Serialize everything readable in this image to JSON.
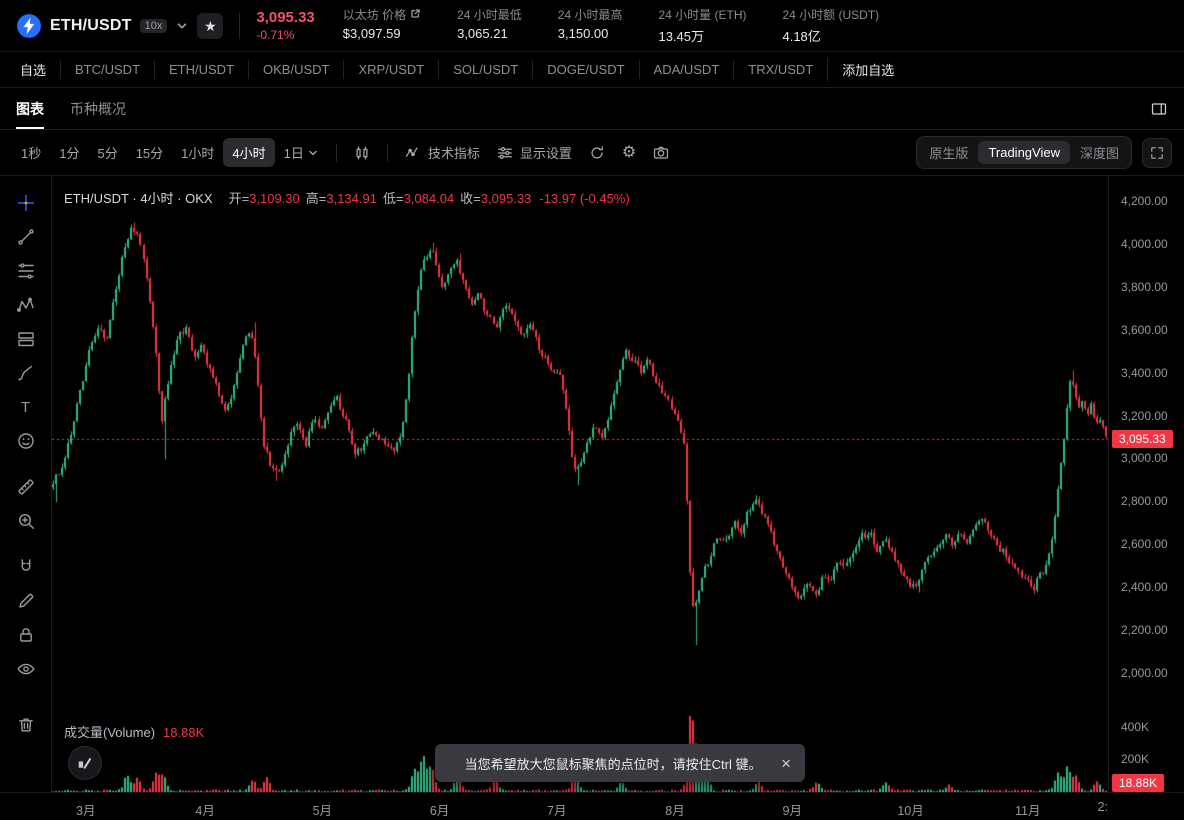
{
  "colors": {
    "up": "#2ebd85",
    "down": "#f23645",
    "accent_red": "#f0506e"
  },
  "header": {
    "pair": "ETH/USDT",
    "leverage": "10x",
    "price": "3,095.33",
    "change_pct": "-0.71%",
    "stats": [
      {
        "label": "以太坊 价格",
        "value": "$3,097.59"
      },
      {
        "label": "24 小时最低",
        "value": "3,065.21"
      },
      {
        "label": "24 小时最高",
        "value": "3,150.00"
      },
      {
        "label": "24 小时量 (ETH)",
        "value": "13.45万"
      },
      {
        "label": "24 小时额 (USDT)",
        "value": "4.18亿"
      }
    ]
  },
  "pairs_bar": {
    "items": [
      "自选",
      "BTC/USDT",
      "ETH/USDT",
      "OKB/USDT",
      "XRP/USDT",
      "SOL/USDT",
      "DOGE/USDT",
      "ADA/USDT",
      "TRX/USDT",
      "添加自选"
    ]
  },
  "view_tabs": {
    "chart": "图表",
    "overview": "币种概况"
  },
  "toolbar": {
    "intervals": [
      "1秒",
      "1分",
      "5分",
      "15分",
      "1小时",
      "4小时",
      "1日"
    ],
    "active_interval": "4小时",
    "indicators_label": "技术指标",
    "display_settings_label": "显示设置",
    "mode_tabs": [
      "原生版",
      "TradingView",
      "深度图"
    ],
    "active_mode": "TradingView"
  },
  "legend": {
    "title": "ETH/USDT · 4小时 · OKX",
    "open_label": "开=",
    "open": "3,109.30",
    "high_label": "高=",
    "high": "3,134.91",
    "low_label": "低=",
    "low": "3,084.04",
    "close_label": "收=",
    "close": "3,095.33",
    "change": "-13.97 (-0.45%)"
  },
  "volume_legend": {
    "label": "成交量(Volume)",
    "value": "18.88K"
  },
  "toast": {
    "text": "当您希望放大您鼠标聚焦的点位时，请按住Ctrl 键。"
  },
  "chart_data": {
    "type": "candlestick",
    "title": "ETH/USDT · 4小时 · OKX",
    "interval": "4小时",
    "exchange": "OKX",
    "last_price": 3095.33,
    "price_badge": "3,095.33",
    "volume_badge": "18.88K",
    "candle_count": 350,
    "y_ticks": [
      {
        "label": "4,200.00",
        "value": 4200
      },
      {
        "label": "4,000.00",
        "value": 4000
      },
      {
        "label": "3,800.00",
        "value": 3800
      },
      {
        "label": "3,600.00",
        "value": 3600
      },
      {
        "label": "3,400.00",
        "value": 3400
      },
      {
        "label": "3,200.00",
        "value": 3200
      },
      {
        "label": "3,000.00",
        "value": 3000
      },
      {
        "label": "2,800.00",
        "value": 2800
      },
      {
        "label": "2,600.00",
        "value": 2600
      },
      {
        "label": "2,400.00",
        "value": 2400
      },
      {
        "label": "2,200.00",
        "value": 2200
      },
      {
        "label": "2,000.00",
        "value": 2000
      }
    ],
    "volume_ticks": [
      {
        "label": "400K",
        "value": 400000
      },
      {
        "label": "200K",
        "value": 200000
      }
    ],
    "x_labels": [
      {
        "t": 0.032,
        "label": "3月"
      },
      {
        "t": 0.145,
        "label": "4月"
      },
      {
        "t": 0.256,
        "label": "5月"
      },
      {
        "t": 0.367,
        "label": "6月"
      },
      {
        "t": 0.478,
        "label": "7月"
      },
      {
        "t": 0.59,
        "label": "8月"
      },
      {
        "t": 0.701,
        "label": "9月"
      },
      {
        "t": 0.813,
        "label": "10月"
      },
      {
        "t": 0.924,
        "label": "11月"
      },
      {
        "t": 0.995,
        "label": "2:"
      }
    ],
    "price_path": [
      [
        0.0,
        2870
      ],
      [
        0.006,
        2915
      ],
      [
        0.012,
        2960
      ],
      [
        0.02,
        3120
      ],
      [
        0.03,
        3340
      ],
      [
        0.038,
        3520
      ],
      [
        0.046,
        3620
      ],
      [
        0.054,
        3560
      ],
      [
        0.062,
        3780
      ],
      [
        0.07,
        3960
      ],
      [
        0.078,
        4080
      ],
      [
        0.084,
        4040
      ],
      [
        0.09,
        3900
      ],
      [
        0.096,
        3680
      ],
      [
        0.101,
        3440
      ],
      [
        0.105,
        3160
      ],
      [
        0.11,
        3320
      ],
      [
        0.117,
        3500
      ],
      [
        0.123,
        3580
      ],
      [
        0.129,
        3620
      ],
      [
        0.136,
        3480
      ],
      [
        0.143,
        3530
      ],
      [
        0.15,
        3440
      ],
      [
        0.158,
        3340
      ],
      [
        0.165,
        3210
      ],
      [
        0.172,
        3300
      ],
      [
        0.18,
        3480
      ],
      [
        0.186,
        3560
      ],
      [
        0.191,
        3600
      ],
      [
        0.197,
        3360
      ],
      [
        0.203,
        3060
      ],
      [
        0.21,
        2960
      ],
      [
        0.218,
        2930
      ],
      [
        0.226,
        3080
      ],
      [
        0.234,
        3180
      ],
      [
        0.242,
        3060
      ],
      [
        0.25,
        3200
      ],
      [
        0.256,
        3130
      ],
      [
        0.263,
        3220
      ],
      [
        0.271,
        3290
      ],
      [
        0.28,
        3180
      ],
      [
        0.289,
        3020
      ],
      [
        0.297,
        3070
      ],
      [
        0.306,
        3130
      ],
      [
        0.315,
        3080
      ],
      [
        0.324,
        3040
      ],
      [
        0.332,
        3110
      ],
      [
        0.338,
        3300
      ],
      [
        0.344,
        3620
      ],
      [
        0.35,
        3870
      ],
      [
        0.356,
        3930
      ],
      [
        0.361,
        3990
      ],
      [
        0.366,
        3890
      ],
      [
        0.372,
        3800
      ],
      [
        0.379,
        3880
      ],
      [
        0.385,
        3930
      ],
      [
        0.392,
        3830
      ],
      [
        0.399,
        3720
      ],
      [
        0.407,
        3770
      ],
      [
        0.415,
        3660
      ],
      [
        0.423,
        3610
      ],
      [
        0.431,
        3720
      ],
      [
        0.439,
        3660
      ],
      [
        0.447,
        3570
      ],
      [
        0.455,
        3630
      ],
      [
        0.463,
        3520
      ],
      [
        0.47,
        3450
      ],
      [
        0.477,
        3420
      ],
      [
        0.484,
        3390
      ],
      [
        0.49,
        3180
      ],
      [
        0.496,
        2950
      ],
      [
        0.502,
        2980
      ],
      [
        0.509,
        3080
      ],
      [
        0.516,
        3150
      ],
      [
        0.523,
        3090
      ],
      [
        0.531,
        3240
      ],
      [
        0.539,
        3410
      ],
      [
        0.546,
        3500
      ],
      [
        0.553,
        3460
      ],
      [
        0.56,
        3410
      ],
      [
        0.567,
        3480
      ],
      [
        0.574,
        3360
      ],
      [
        0.581,
        3310
      ],
      [
        0.588,
        3250
      ],
      [
        0.595,
        3160
      ],
      [
        0.601,
        3060
      ],
      [
        0.605,
        2520
      ],
      [
        0.609,
        2300
      ],
      [
        0.613,
        2380
      ],
      [
        0.619,
        2480
      ],
      [
        0.626,
        2560
      ],
      [
        0.633,
        2650
      ],
      [
        0.64,
        2610
      ],
      [
        0.647,
        2700
      ],
      [
        0.654,
        2670
      ],
      [
        0.661,
        2760
      ],
      [
        0.669,
        2810
      ],
      [
        0.676,
        2740
      ],
      [
        0.683,
        2660
      ],
      [
        0.69,
        2560
      ],
      [
        0.697,
        2470
      ],
      [
        0.704,
        2390
      ],
      [
        0.711,
        2350
      ],
      [
        0.718,
        2440
      ],
      [
        0.725,
        2360
      ],
      [
        0.732,
        2450
      ],
      [
        0.739,
        2430
      ],
      [
        0.746,
        2530
      ],
      [
        0.753,
        2490
      ],
      [
        0.76,
        2560
      ],
      [
        0.768,
        2650
      ],
      [
        0.776,
        2660
      ],
      [
        0.783,
        2580
      ],
      [
        0.79,
        2640
      ],
      [
        0.798,
        2560
      ],
      [
        0.806,
        2480
      ],
      [
        0.813,
        2420
      ],
      [
        0.82,
        2400
      ],
      [
        0.827,
        2510
      ],
      [
        0.834,
        2555
      ],
      [
        0.841,
        2600
      ],
      [
        0.848,
        2640
      ],
      [
        0.855,
        2610
      ],
      [
        0.862,
        2660
      ],
      [
        0.869,
        2620
      ],
      [
        0.876,
        2690
      ],
      [
        0.883,
        2730
      ],
      [
        0.89,
        2660
      ],
      [
        0.897,
        2600
      ],
      [
        0.904,
        2560
      ],
      [
        0.911,
        2520
      ],
      [
        0.918,
        2470
      ],
      [
        0.925,
        2430
      ],
      [
        0.931,
        2400
      ],
      [
        0.937,
        2460
      ],
      [
        0.943,
        2500
      ],
      [
        0.948,
        2620
      ],
      [
        0.953,
        2800
      ],
      [
        0.958,
        3020
      ],
      [
        0.962,
        3200
      ],
      [
        0.966,
        3360
      ],
      [
        0.97,
        3330
      ],
      [
        0.974,
        3230
      ],
      [
        0.978,
        3290
      ],
      [
        0.982,
        3210
      ],
      [
        0.986,
        3260
      ],
      [
        0.99,
        3150
      ],
      [
        0.994,
        3190
      ],
      [
        1.0,
        3095
      ]
    ],
    "wick_lows": [
      [
        0.004,
        2800
      ],
      [
        0.105,
        3000
      ],
      [
        0.211,
        2900
      ],
      [
        0.496,
        2880
      ],
      [
        0.597,
        3070
      ],
      [
        0.609,
        2135
      ],
      [
        0.82,
        2380
      ],
      [
        0.931,
        2380
      ]
    ],
    "wick_highs": [
      [
        0.078,
        4105
      ],
      [
        0.191,
        3640
      ],
      [
        0.361,
        4010
      ],
      [
        0.385,
        3960
      ],
      [
        0.966,
        3415
      ]
    ],
    "volume_spikes": [
      [
        0.072,
        100
      ],
      [
        0.082,
        80
      ],
      [
        0.099,
        115
      ],
      [
        0.106,
        90
      ],
      [
        0.191,
        65
      ],
      [
        0.204,
        80
      ],
      [
        0.344,
        130
      ],
      [
        0.352,
        215
      ],
      [
        0.36,
        150
      ],
      [
        0.385,
        105
      ],
      [
        0.42,
        65
      ],
      [
        0.496,
        145
      ],
      [
        0.54,
        55
      ],
      [
        0.605,
        470
      ],
      [
        0.611,
        205
      ],
      [
        0.62,
        115
      ],
      [
        0.669,
        55
      ],
      [
        0.725,
        50
      ],
      [
        0.79,
        45
      ],
      [
        0.85,
        40
      ],
      [
        0.953,
        115
      ],
      [
        0.962,
        150
      ],
      [
        0.97,
        95
      ],
      [
        0.99,
        55
      ]
    ]
  }
}
